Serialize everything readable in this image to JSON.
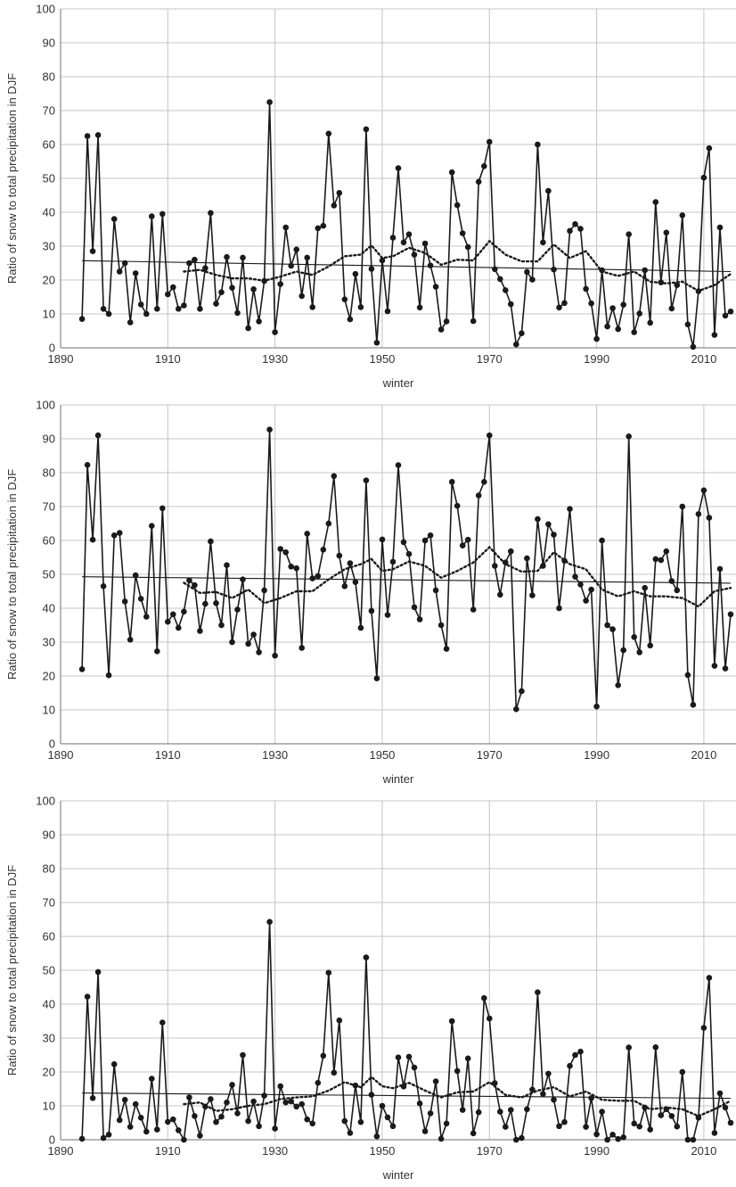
{
  "colors": {
    "series": "#1a1a1a",
    "trend": "#1a1a1a",
    "grid": "#c4c4c4",
    "axis": "#8a8a8a",
    "text": "#333333"
  },
  "chart_data": [
    {
      "type": "line",
      "xlabel": "winter",
      "ylabel": "Ratio of snow to total precipitation in DJF",
      "xlim": [
        1890,
        2016
      ],
      "ylim": [
        0,
        100
      ],
      "xticks": [
        1890,
        1910,
        1930,
        1950,
        1970,
        1990,
        2010
      ],
      "yticks": [
        0,
        10,
        20,
        30,
        40,
        50,
        60,
        70,
        80,
        90,
        100
      ],
      "grid": true,
      "start_year": 1894,
      "series": [
        {
          "style": "solid-markers",
          "values": [
            8.5,
            62.5,
            28.5,
            62.8,
            11.5,
            10.0,
            38.0,
            22.5,
            25.0,
            7.5,
            22.0,
            12.8,
            10.0,
            38.8,
            11.5,
            39.5,
            15.8,
            17.9,
            11.5,
            12.5,
            25.0,
            26.0,
            11.5,
            23.5,
            39.8,
            13.0,
            16.4,
            26.8,
            17.7,
            10.3,
            26.6,
            5.8,
            17.3,
            7.8,
            19.7,
            72.5,
            4.6,
            18.8,
            35.5,
            24.2,
            29.0,
            15.3,
            26.6,
            12.0,
            35.3,
            36.0,
            63.2,
            42.0,
            45.7,
            14.3,
            8.4,
            21.8,
            12.0,
            64.5,
            23.3,
            1.5,
            25.8,
            10.8,
            32.5,
            53.0,
            31.1,
            33.5,
            27.5,
            11.9,
            30.8,
            24.3,
            18.0,
            5.4,
            7.8,
            51.8,
            42.1,
            33.8,
            29.7,
            7.9,
            49.0,
            53.6,
            60.8,
            23.2,
            20.3,
            17.0,
            12.9,
            1.0,
            4.3,
            22.4,
            20.1,
            60.0,
            31.1,
            46.3,
            23.1,
            11.9,
            13.2,
            34.5,
            36.5,
            35.1,
            17.4,
            13.1,
            2.6,
            22.9,
            6.3,
            11.7,
            5.5,
            12.7,
            33.5,
            4.6,
            10.1,
            22.9,
            7.4,
            43.0,
            19.3,
            34.0,
            11.6,
            18.5,
            39.1,
            6.9,
            0.3,
            16.7,
            50.2,
            58.9,
            3.8,
            35.5,
            9.5,
            10.7
          ]
        },
        {
          "style": "linear-trend",
          "x": [
            1894,
            2015
          ],
          "values": [
            25.7,
            22.5
          ]
        },
        {
          "style": "dotted-smooth",
          "x": [
            1913,
            1916,
            1919,
            1922,
            1925,
            1928,
            1931,
            1934,
            1937,
            1940,
            1943,
            1946,
            1948,
            1950,
            1952,
            1955,
            1958,
            1961,
            1964,
            1967,
            1970,
            1973,
            1976,
            1979,
            1982,
            1985,
            1988,
            1991,
            1994,
            1997,
            2000,
            2003,
            2006,
            2009,
            2012,
            2015
          ],
          "values": [
            22.5,
            23.0,
            21.5,
            20.5,
            20.5,
            19.8,
            21.0,
            22.5,
            21.5,
            24.0,
            27.0,
            27.5,
            30.2,
            26.5,
            27.0,
            29.5,
            28.0,
            24.5,
            26.0,
            25.8,
            31.5,
            27.5,
            25.5,
            25.5,
            30.5,
            26.5,
            28.5,
            22.5,
            21.2,
            22.5,
            19.5,
            19.0,
            19.5,
            16.8,
            18.5,
            21.8
          ]
        }
      ]
    },
    {
      "type": "line",
      "xlabel": "winter",
      "ylabel": "Ratio of snow to total precipitation in DJF",
      "xlim": [
        1890,
        2016
      ],
      "ylim": [
        0,
        100
      ],
      "xticks": [
        1890,
        1910,
        1930,
        1950,
        1970,
        1990,
        2010
      ],
      "yticks": [
        0,
        10,
        20,
        30,
        40,
        50,
        60,
        70,
        80,
        90,
        100
      ],
      "grid": true,
      "start_year": 1894,
      "series": [
        {
          "style": "solid-markers",
          "values": [
            22.0,
            82.3,
            60.2,
            91.0,
            46.5,
            20.2,
            61.5,
            62.2,
            42.0,
            30.7,
            49.7,
            42.8,
            37.5,
            64.3,
            27.3,
            69.5,
            36.0,
            38.2,
            34.2,
            39.0,
            48.2,
            46.8,
            33.3,
            41.3,
            59.7,
            41.5,
            35.0,
            52.7,
            30.0,
            39.6,
            48.5,
            29.5,
            32.2,
            27.0,
            45.3,
            92.7,
            26.0,
            57.5,
            56.5,
            52.3,
            51.8,
            28.3,
            62.0,
            48.8,
            49.5,
            57.3,
            65.0,
            79.0,
            55.5,
            46.5,
            53.3,
            47.7,
            34.2,
            77.7,
            39.2,
            19.3,
            60.3,
            38.0,
            53.7,
            82.2,
            59.5,
            56.0,
            40.3,
            36.7,
            60.0,
            61.5,
            45.3,
            35.0,
            28.0,
            77.3,
            70.2,
            58.5,
            60.2,
            39.6,
            73.3,
            77.3,
            91.0,
            52.5,
            44.0,
            53.5,
            56.8,
            10.2,
            15.5,
            54.7,
            43.8,
            66.3,
            52.5,
            64.8,
            61.7,
            40.0,
            54.0,
            69.3,
            49.3,
            47.0,
            42.2,
            45.5,
            11.0,
            60.0,
            35.0,
            33.8,
            17.3,
            27.6,
            90.7,
            31.5,
            27.0,
            46.0,
            29.0,
            54.5,
            54.2,
            56.8,
            48.0,
            45.3,
            70.0,
            20.3,
            11.5,
            67.8,
            74.8,
            66.7,
            23.0,
            51.6,
            22.2,
            38.2
          ]
        },
        {
          "style": "linear-trend",
          "x": [
            1894,
            2015
          ],
          "values": [
            49.3,
            47.4
          ]
        },
        {
          "style": "dotted-smooth",
          "x": [
            1913,
            1916,
            1919,
            1922,
            1925,
            1928,
            1931,
            1934,
            1937,
            1940,
            1943,
            1946,
            1948,
            1950,
            1952,
            1955,
            1958,
            1961,
            1964,
            1967,
            1970,
            1973,
            1976,
            1979,
            1982,
            1985,
            1988,
            1991,
            1994,
            1997,
            2000,
            2003,
            2006,
            2009,
            2012,
            2015
          ],
          "values": [
            47.5,
            44.5,
            44.8,
            43.0,
            45.5,
            41.5,
            43.0,
            45.0,
            45.0,
            48.5,
            51.5,
            53.0,
            54.5,
            51.0,
            51.5,
            53.8,
            52.5,
            49.0,
            51.0,
            53.5,
            58.0,
            53.0,
            50.8,
            51.0,
            56.5,
            53.0,
            51.5,
            45.5,
            43.5,
            45.0,
            43.5,
            43.5,
            43.0,
            40.5,
            45.0,
            46.0
          ]
        }
      ]
    },
    {
      "type": "line",
      "xlabel": "winter",
      "ylabel": "Ratio of snow to total precipitation in DJF",
      "xlim": [
        1890,
        2016
      ],
      "ylim": [
        0,
        100
      ],
      "xticks": [
        1890,
        1910,
        1930,
        1950,
        1970,
        1990,
        2010
      ],
      "yticks": [
        0,
        10,
        20,
        30,
        40,
        50,
        60,
        70,
        80,
        90,
        100
      ],
      "grid": true,
      "start_year": 1894,
      "series": [
        {
          "style": "solid-markers",
          "values": [
            0.3,
            42.2,
            12.3,
            49.5,
            0.5,
            1.5,
            22.3,
            5.8,
            11.8,
            3.8,
            10.5,
            6.5,
            2.4,
            18.0,
            3.0,
            34.6,
            5.3,
            6.0,
            2.8,
            0.0,
            12.5,
            7.0,
            1.2,
            9.8,
            12.0,
            5.2,
            6.8,
            11.0,
            16.2,
            7.8,
            25.0,
            5.5,
            11.3,
            4.0,
            13.0,
            64.3,
            3.3,
            15.8,
            11.0,
            11.3,
            9.8,
            10.5,
            6.0,
            4.8,
            16.8,
            24.8,
            49.3,
            19.8,
            35.2,
            5.5,
            2.0,
            16.0,
            5.2,
            53.8,
            13.3,
            1.0,
            10.0,
            6.6,
            4.0,
            24.3,
            15.7,
            24.5,
            21.3,
            10.7,
            2.5,
            7.8,
            17.2,
            0.3,
            4.8,
            35.0,
            20.3,
            8.8,
            24.0,
            1.9,
            8.1,
            41.8,
            35.8,
            16.7,
            8.3,
            3.8,
            8.8,
            0.0,
            0.5,
            9.0,
            14.8,
            43.5,
            13.5,
            19.5,
            11.8,
            4.0,
            5.2,
            21.8,
            25.0,
            26.0,
            3.8,
            12.3,
            1.6,
            8.3,
            0.0,
            1.5,
            0.2,
            0.7,
            27.2,
            4.8,
            3.9,
            9.5,
            3.0,
            27.3,
            7.2,
            9.0,
            7.0,
            3.9,
            20.0,
            0.0,
            0.0,
            6.5,
            33.0,
            47.8,
            2.0,
            13.7,
            9.5,
            5.0
          ]
        },
        {
          "style": "linear-trend",
          "x": [
            1894,
            2015
          ],
          "values": [
            13.8,
            12.2
          ]
        },
        {
          "style": "dotted-smooth",
          "x": [
            1913,
            1916,
            1919,
            1922,
            1925,
            1928,
            1931,
            1934,
            1937,
            1940,
            1943,
            1946,
            1948,
            1950,
            1952,
            1955,
            1958,
            1961,
            1964,
            1967,
            1970,
            1973,
            1976,
            1979,
            1982,
            1985,
            1988,
            1991,
            1994,
            1997,
            2000,
            2003,
            2006,
            2009,
            2012,
            2015
          ],
          "values": [
            10.5,
            11.0,
            8.5,
            9.0,
            10.0,
            10.5,
            12.0,
            12.5,
            12.8,
            14.5,
            17.0,
            15.5,
            18.5,
            15.8,
            15.2,
            16.8,
            14.5,
            12.5,
            14.0,
            14.2,
            17.0,
            13.2,
            12.5,
            14.5,
            15.5,
            12.8,
            14.2,
            11.8,
            11.5,
            11.5,
            9.0,
            9.5,
            9.0,
            7.0,
            9.0,
            11.5
          ]
        }
      ]
    }
  ]
}
